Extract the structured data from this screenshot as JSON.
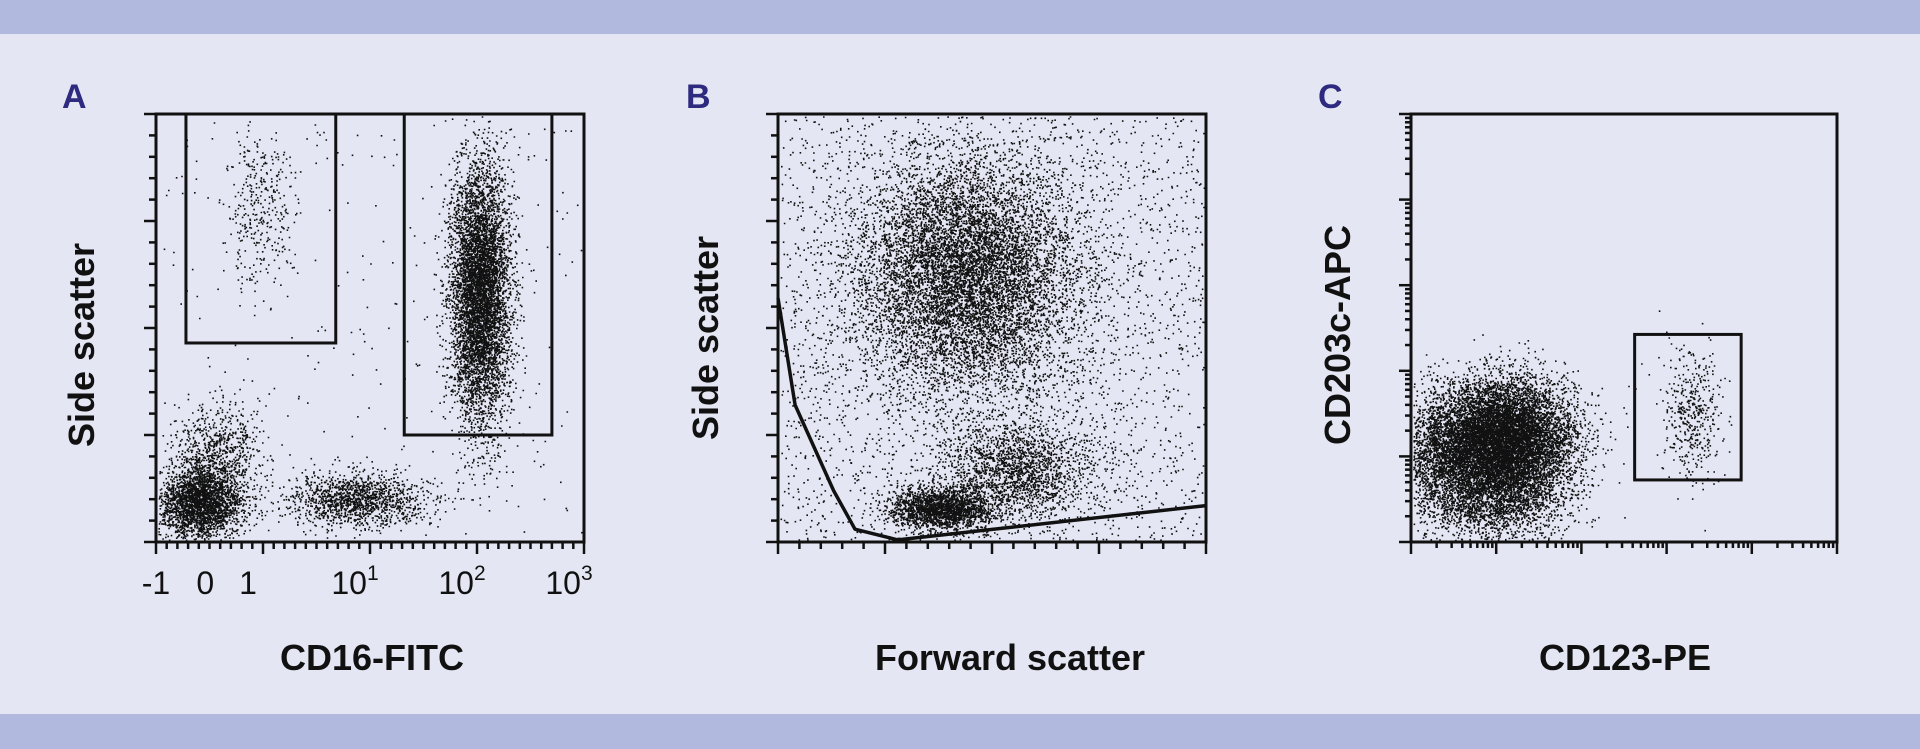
{
  "colors": {
    "background": "#e4e7f3",
    "band": "#b2b9de",
    "letter": "#2e2a7f",
    "ink": "#111111"
  },
  "chart_data": [
    {
      "panel": "A",
      "type": "scatter",
      "xlabel": "CD16-FITC",
      "ylabel": "Side scatter",
      "x_scale": "log",
      "xlim": [
        -1,
        1000
      ],
      "x_tick_labels": [
        {
          "value": -1,
          "base": "-1",
          "sup": ""
        },
        {
          "value": 0,
          "base": "0",
          "sup": ""
        },
        {
          "value": 1,
          "base": "1",
          "sup": ""
        },
        {
          "value": 10,
          "base": "10",
          "sup": "1"
        },
        {
          "value": 100,
          "base": "10",
          "sup": "2"
        },
        {
          "value": 1000,
          "base": "10",
          "sup": "3"
        }
      ],
      "ylim": [
        0,
        1
      ],
      "grid": false,
      "clusters": [
        {
          "cx": 0.1,
          "cy": 0.09,
          "sx": 0.05,
          "sy": 0.04,
          "n": 2600
        },
        {
          "cx": 0.14,
          "cy": 0.2,
          "sx": 0.05,
          "sy": 0.06,
          "n": 900
        },
        {
          "cx": 0.47,
          "cy": 0.1,
          "sx": 0.08,
          "sy": 0.03,
          "n": 1400
        },
        {
          "cx": 0.755,
          "cy": 0.58,
          "sx": 0.035,
          "sy": 0.15,
          "n": 6200
        },
        {
          "cx": 0.24,
          "cy": 0.78,
          "sx": 0.04,
          "sy": 0.1,
          "n": 350
        },
        {
          "cx": 0.5,
          "cy": 0.5,
          "sx": 0.5,
          "sy": 0.5,
          "n": 300,
          "uniform": true
        }
      ],
      "gates": [
        {
          "type": "rect",
          "x": [
            0.07,
            0.42
          ],
          "y": [
            0.465,
            1.0
          ]
        },
        {
          "type": "rect",
          "x": [
            0.58,
            0.925
          ],
          "y": [
            0.25,
            1.0
          ]
        }
      ]
    },
    {
      "panel": "B",
      "type": "scatter",
      "xlabel": "Forward scatter",
      "ylabel": "Side scatter",
      "xlim": [
        0,
        1
      ],
      "ylim": [
        0,
        1
      ],
      "grid": false,
      "clusters": [
        {
          "cx": 0.44,
          "cy": 0.62,
          "sx": 0.13,
          "sy": 0.14,
          "n": 9000
        },
        {
          "cx": 0.38,
          "cy": 0.08,
          "sx": 0.06,
          "sy": 0.025,
          "n": 2200
        },
        {
          "cx": 0.56,
          "cy": 0.17,
          "sx": 0.09,
          "sy": 0.06,
          "n": 1800
        },
        {
          "cx": 0.5,
          "cy": 0.5,
          "sx": 0.5,
          "sy": 0.5,
          "n": 2800,
          "uniform": true
        }
      ],
      "gates": [
        {
          "type": "polygon",
          "points": [
            [
              0.0,
              0.57
            ],
            [
              0.04,
              0.32
            ],
            [
              0.13,
              0.12
            ],
            [
              0.18,
              0.03
            ],
            [
              0.28,
              0.005
            ],
            [
              1.0,
              0.085
            ]
          ]
        }
      ]
    },
    {
      "panel": "C",
      "type": "scatter",
      "xlabel": "CD123-PE",
      "ylabel": "CD203c-APC",
      "x_scale": "log",
      "y_scale": "log",
      "xlim": [
        0,
        1
      ],
      "ylim": [
        0,
        1
      ],
      "grid": false,
      "clusters": [
        {
          "cx": 0.22,
          "cy": 0.24,
          "sx": 0.08,
          "sy": 0.07,
          "n": 9000
        },
        {
          "cx": 0.08,
          "cy": 0.2,
          "sx": 0.06,
          "sy": 0.07,
          "n": 2200
        },
        {
          "cx": 0.2,
          "cy": 0.1,
          "sx": 0.08,
          "sy": 0.05,
          "n": 1800
        },
        {
          "cx": 0.66,
          "cy": 0.3,
          "sx": 0.035,
          "sy": 0.08,
          "n": 450
        }
      ],
      "gates": [
        {
          "type": "rect",
          "x": [
            0.525,
            0.775
          ],
          "y": [
            0.145,
            0.485
          ]
        }
      ]
    }
  ]
}
